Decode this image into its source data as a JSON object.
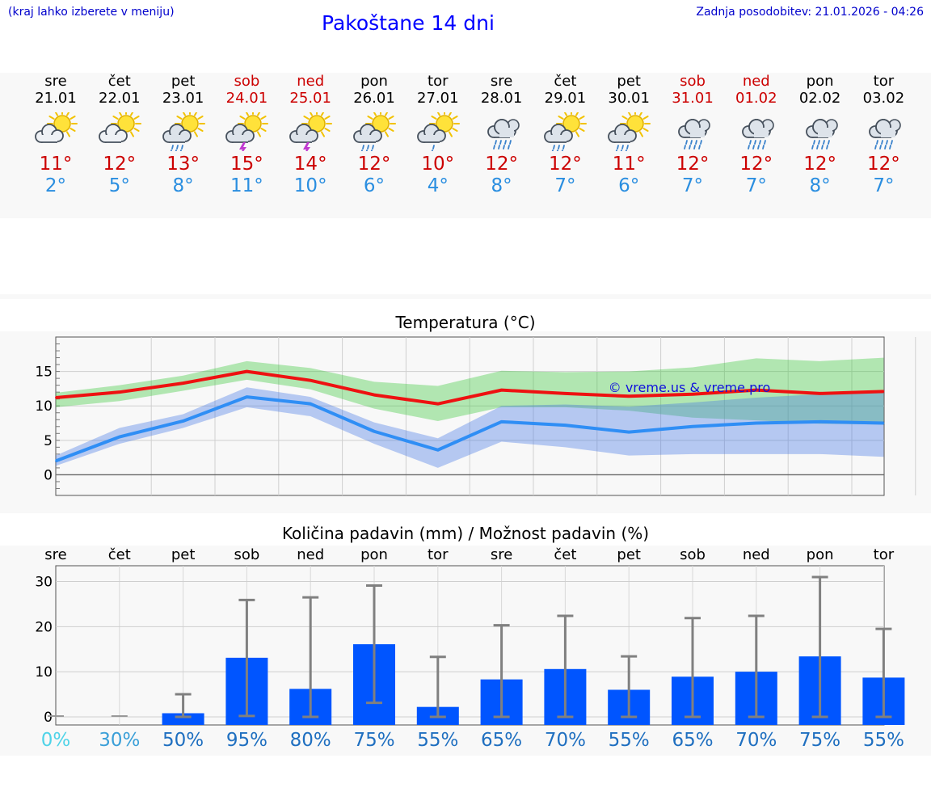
{
  "header": {
    "hint": "(kraj lahko izberete v meniju)",
    "title": "Pakoštane 14 dni",
    "updated": "Zadnja posodobitev: 21.01.2026 - 04:26"
  },
  "colors": {
    "link_blue": "#0000cc",
    "title_blue": "#0000ff",
    "high_red": "#cc0000",
    "low_blue": "#2a8ee0",
    "bar_blue": "#0055ff",
    "max_line": "#ee1111",
    "min_line": "#2f8ef5"
  },
  "days": [
    {
      "name": "sre",
      "date": "21.01",
      "icon": "sun-cloud-icon",
      "high": "11°",
      "low": "2°",
      "weekend": false
    },
    {
      "name": "čet",
      "date": "22.01",
      "icon": "sun-cloud-icon",
      "high": "12°",
      "low": "5°",
      "weekend": false
    },
    {
      "name": "pet",
      "date": "23.01",
      "icon": "sun-cloud-rain-icon",
      "high": "13°",
      "low": "8°",
      "weekend": false
    },
    {
      "name": "sob",
      "date": "24.01",
      "icon": "sun-cloud-thunder-icon",
      "high": "15°",
      "low": "11°",
      "weekend": true
    },
    {
      "name": "ned",
      "date": "25.01",
      "icon": "sun-cloud-thunder-icon",
      "high": "14°",
      "low": "10°",
      "weekend": true
    },
    {
      "name": "pon",
      "date": "26.01",
      "icon": "sun-cloud-rain-icon",
      "high": "12°",
      "low": "6°",
      "weekend": false
    },
    {
      "name": "tor",
      "date": "27.01",
      "icon": "sun-cloud-light-rain-icon",
      "high": "10°",
      "low": "4°",
      "weekend": false
    },
    {
      "name": "sre",
      "date": "28.01",
      "icon": "cloud-rain-icon",
      "high": "12°",
      "low": "8°",
      "weekend": false
    },
    {
      "name": "čet",
      "date": "29.01",
      "icon": "sun-cloud-rain-icon",
      "high": "12°",
      "low": "7°",
      "weekend": false
    },
    {
      "name": "pet",
      "date": "30.01",
      "icon": "sun-cloud-rain-icon",
      "high": "11°",
      "low": "6°",
      "weekend": false
    },
    {
      "name": "sob",
      "date": "31.01",
      "icon": "cloud-rain-icon",
      "high": "12°",
      "low": "7°",
      "weekend": true
    },
    {
      "name": "ned",
      "date": "01.02",
      "icon": "cloud-rain-icon",
      "high": "12°",
      "low": "7°",
      "weekend": true
    },
    {
      "name": "pon",
      "date": "02.02",
      "icon": "cloud-rain-icon",
      "high": "12°",
      "low": "8°",
      "weekend": false
    },
    {
      "name": "tor",
      "date": "03.02",
      "icon": "cloud-rain-icon",
      "high": "12°",
      "low": "7°",
      "weekend": false
    }
  ],
  "chart_data": [
    {
      "type": "line",
      "title": "Temperatura (°C)",
      "watermark": "© vreme.us & vreme.pro",
      "x": [
        0,
        1,
        2,
        3,
        4,
        5,
        6,
        7,
        8,
        9,
        10,
        11,
        12,
        13
      ],
      "ylim": [
        -3,
        20
      ],
      "yticks": [
        0,
        5,
        10,
        15
      ],
      "grid": true,
      "series": [
        {
          "name": "max",
          "values": [
            11.2,
            12.0,
            13.3,
            15.0,
            13.7,
            11.6,
            10.3,
            12.3,
            11.8,
            11.4,
            11.7,
            12.3,
            11.8,
            12.1
          ],
          "band_low": [
            9.8,
            10.7,
            12.2,
            13.8,
            12.4,
            9.6,
            7.8,
            9.8,
            9.8,
            9.3,
            8.3,
            7.9,
            7.4,
            7.3
          ],
          "band_high": [
            11.9,
            13.0,
            14.4,
            16.5,
            15.5,
            13.5,
            12.9,
            15.1,
            14.9,
            15.0,
            15.6,
            16.9,
            16.5,
            17.0
          ]
        },
        {
          "name": "min",
          "values": [
            2.0,
            5.5,
            7.8,
            11.3,
            10.3,
            6.3,
            3.6,
            7.7,
            7.2,
            6.2,
            7.0,
            7.5,
            7.7,
            7.5
          ],
          "band_low": [
            1.3,
            4.5,
            6.8,
            9.8,
            8.5,
            4.5,
            1.0,
            4.8,
            4.0,
            2.8,
            3.0,
            3.0,
            3.0,
            2.6
          ],
          "band_high": [
            2.8,
            6.8,
            8.8,
            12.7,
            11.3,
            7.6,
            5.3,
            10.0,
            10.2,
            9.9,
            10.5,
            11.2,
            11.7,
            12.0
          ]
        }
      ]
    },
    {
      "type": "bar",
      "title": "Količina padavin (mm) / Možnost padavin (%)",
      "categories": [
        "sre",
        "čet",
        "pet",
        "sob",
        "ned",
        "pon",
        "tor",
        "sre",
        "čet",
        "pet",
        "sob",
        "ned",
        "pon",
        "tor"
      ],
      "values": [
        0,
        0,
        0.8,
        13.1,
        6.2,
        16.1,
        2.2,
        8.3,
        10.6,
        6.0,
        8.9,
        10.0,
        13.4,
        8.7
      ],
      "error_low": [
        0,
        0,
        0,
        0.2,
        0,
        3.1,
        0,
        0,
        0,
        0,
        0,
        0,
        0,
        0
      ],
      "error_high": [
        0,
        0,
        5.0,
        25.9,
        26.5,
        29.1,
        13.3,
        20.3,
        22.4,
        13.4,
        21.9,
        22.4,
        31.0,
        19.5
      ],
      "chance": [
        "0%",
        "30%",
        "50%",
        "95%",
        "80%",
        "75%",
        "55%",
        "65%",
        "70%",
        "55%",
        "65%",
        "70%",
        "75%",
        "55%"
      ],
      "chance_colors": [
        "#4fd3e8",
        "#3a9fd8",
        "#1f6fc0",
        "#1f6fc0",
        "#1f6fc0",
        "#1f6fc0",
        "#1f6fc0",
        "#1f6fc0",
        "#1f6fc0",
        "#1f6fc0",
        "#1f6fc0",
        "#1f6fc0",
        "#1f6fc0",
        "#1f6fc0"
      ],
      "ylim": [
        -1.8,
        33.5
      ],
      "yticks": [
        0,
        10,
        20,
        30
      ],
      "grid": true
    }
  ]
}
